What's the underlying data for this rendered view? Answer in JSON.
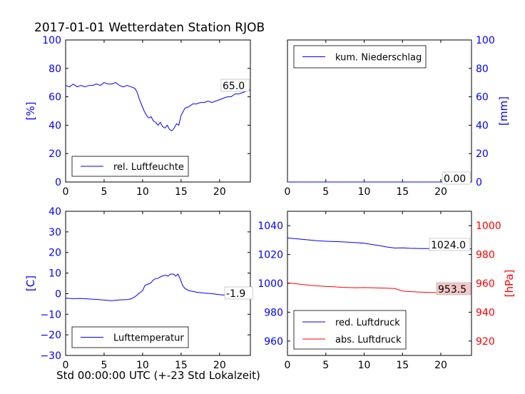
{
  "figure": {
    "title": "2017-01-01 Wetterdaten Station RJOB",
    "xlabel": "Std 00:00:00 UTC (+-23 Std Lokalzeit)",
    "colors": {
      "primary": "#0000ff",
      "secondary": "#ff0000"
    }
  },
  "chart_data": [
    {
      "id": "humidity",
      "type": "line",
      "xlim": [
        0,
        24
      ],
      "xticks": [
        "0",
        "5",
        "10",
        "15",
        "20"
      ],
      "ylim": [
        0,
        100
      ],
      "yticks": [
        "0",
        "20",
        "40",
        "60",
        "80",
        "100"
      ],
      "ylabel": "[%]",
      "legend": {
        "entries": [
          "rel. Luftfeuchte"
        ],
        "placement": "lower-center"
      },
      "annotation": "65.0",
      "series": [
        {
          "name": "rel. Luftfeuchte",
          "color": "#0000ff",
          "x": [
            0,
            0.5,
            1,
            1.5,
            2,
            2.5,
            3,
            3.5,
            4,
            4.5,
            5,
            5.5,
            6,
            6.5,
            7,
            7.5,
            8,
            8.5,
            9,
            9.3,
            9.6,
            9.9,
            10.2,
            10.5,
            10.8,
            11.1,
            11.4,
            11.7,
            12,
            12.3,
            12.6,
            12.9,
            13.2,
            13.5,
            13.8,
            14.1,
            14.4,
            14.7,
            15,
            15.5,
            16,
            16.5,
            17,
            17.5,
            18,
            18.5,
            19,
            19.5,
            20,
            20.5,
            21,
            21.5,
            22,
            22.5,
            23,
            23.5,
            24
          ],
          "y": [
            68,
            67,
            69,
            67,
            68,
            67,
            68,
            68,
            69,
            68,
            70,
            69,
            69,
            70,
            68,
            67,
            68,
            67,
            66,
            63,
            58,
            54,
            50,
            47,
            45,
            46,
            43,
            42,
            40,
            42,
            39,
            38,
            40,
            37,
            36,
            38,
            41,
            40,
            47,
            52,
            53,
            55,
            55,
            56,
            56,
            57,
            56,
            57,
            58,
            59,
            60,
            60,
            62,
            62,
            63,
            64,
            65
          ]
        }
      ]
    },
    {
      "id": "precipitation",
      "type": "line",
      "xlim": [
        0,
        24
      ],
      "xticks": [
        "0",
        "5",
        "10",
        "15",
        "20"
      ],
      "ylim": [
        0,
        100
      ],
      "yticks": [
        "0",
        "20",
        "40",
        "60",
        "80",
        "100"
      ],
      "ylabel": "[mm]",
      "y_axis_side": "right",
      "legend": {
        "entries": [
          "kum. Niederschlag"
        ],
        "placement": "upper-center"
      },
      "annotation": "0.00",
      "series": [
        {
          "name": "kum. Niederschlag",
          "color": "#0000ff",
          "x": [
            0,
            24
          ],
          "y": [
            0,
            0
          ]
        }
      ]
    },
    {
      "id": "temperature",
      "type": "line",
      "xlim": [
        0,
        24
      ],
      "xticks": [
        "0",
        "5",
        "10",
        "15",
        "20"
      ],
      "ylim": [
        -30,
        40
      ],
      "yticks": [
        "−30",
        "−20",
        "−10",
        "0",
        "10",
        "20",
        "30",
        "40"
      ],
      "ylabel": "[C]",
      "legend": {
        "entries": [
          "Lufttemperatur"
        ],
        "placement": "lower-center"
      },
      "annotation": "-1.9",
      "series": [
        {
          "name": "Lufttemperatur",
          "color": "#0000ff",
          "x": [
            0,
            1,
            2,
            3,
            4,
            5,
            6,
            7,
            8,
            8.5,
            9,
            9.5,
            10,
            10.3,
            10.6,
            11,
            11.5,
            12,
            12.5,
            13,
            13.3,
            13.6,
            14,
            14.3,
            14.6,
            14.9,
            15.2,
            15.5,
            16,
            17,
            18,
            19,
            20,
            21,
            22,
            23,
            24
          ],
          "y": [
            -2.2,
            -2.4,
            -2.3,
            -2.6,
            -2.8,
            -3.1,
            -3.4,
            -3.0,
            -2.9,
            -2.5,
            -1.5,
            0,
            1.5,
            4,
            4.5,
            5,
            7,
            7.5,
            8.5,
            9,
            8.5,
            9.5,
            9.5,
            8.5,
            9.5,
            7,
            4,
            2.5,
            1.5,
            0.7,
            0.3,
            0,
            -0.5,
            -0.8,
            -1.0,
            -1.6,
            -1.9
          ]
        }
      ]
    },
    {
      "id": "pressure",
      "type": "line",
      "xlim": [
        0,
        24
      ],
      "xticks": [
        "0",
        "5",
        "10",
        "15",
        "20"
      ],
      "ylim": [
        950,
        1050
      ],
      "yticks": [
        "960",
        "980",
        "1000",
        "1020",
        "1040"
      ],
      "ylim_right": [
        910,
        1010
      ],
      "yticks_right": [
        "920",
        "940",
        "960",
        "980",
        "1000"
      ],
      "ylabel_right": "[hPa]",
      "legend": {
        "entries": [
          "red. Luftdruck",
          "abs. Luftdruck"
        ],
        "placement": "lower-center"
      },
      "annotations": [
        "1024.0",
        "953.5"
      ],
      "series": [
        {
          "name": "red. Luftdruck",
          "color": "#0000ff",
          "axis": "left",
          "x": [
            0,
            1,
            2,
            3,
            4,
            5,
            6,
            7,
            8,
            9,
            10,
            11,
            12,
            13,
            14,
            15,
            16,
            17,
            18,
            19,
            20,
            21,
            22,
            23,
            24
          ],
          "y": [
            1031.5,
            1031,
            1030.5,
            1030,
            1029.5,
            1029.2,
            1029,
            1028.8,
            1028.5,
            1028.2,
            1027.8,
            1027,
            1026.2,
            1025.2,
            1024.5,
            1024.6,
            1024.3,
            1024.2,
            1024.1,
            1024.1,
            1024,
            1024,
            1024,
            1024,
            1024
          ]
        },
        {
          "name": "abs. Luftdruck",
          "color": "#ff0000",
          "axis": "right",
          "x": [
            0,
            1,
            2,
            3,
            4,
            5,
            6,
            7,
            8,
            9,
            10,
            11,
            12,
            13,
            14,
            14.5,
            15,
            16,
            17,
            18,
            19,
            20,
            21,
            22,
            23,
            24
          ],
          "y": [
            960.3,
            959.8,
            959.2,
            958.6,
            958.2,
            957.9,
            957.6,
            957.3,
            957.1,
            957,
            957.1,
            957,
            956.8,
            956.7,
            956.4,
            955.6,
            954.7,
            954.3,
            954,
            953.8,
            953.6,
            953.5,
            953.5,
            953.5,
            953.5,
            953.5
          ]
        }
      ]
    }
  ]
}
